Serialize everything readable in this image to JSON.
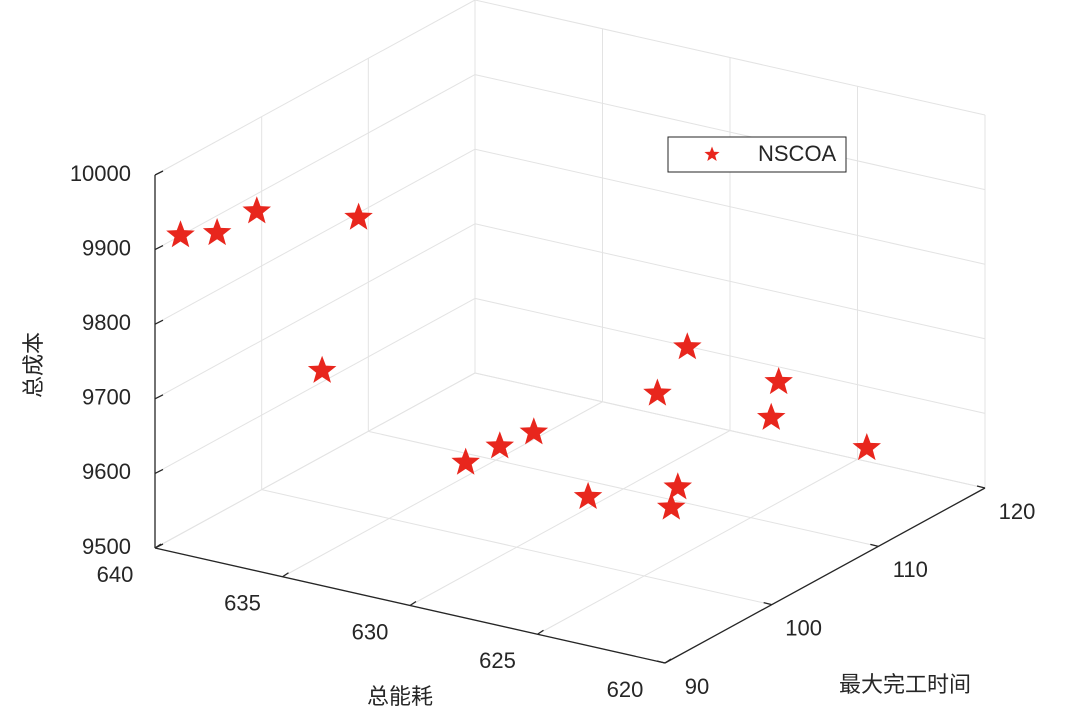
{
  "chart_data": {
    "type": "scatter3d",
    "xlabel": "总能耗",
    "ylabel": "最大完工时间",
    "zlabel": "总成本",
    "xlim": [
      620,
      640
    ],
    "ylim": [
      90,
      120
    ],
    "zlim": [
      9500,
      10000
    ],
    "xticks": [
      620,
      625,
      630,
      635,
      640
    ],
    "yticks": [
      90,
      100,
      110,
      120
    ],
    "zticks": [
      9500,
      9600,
      9700,
      9800,
      9900,
      10000
    ],
    "grid": true,
    "legend": "upper right",
    "series": [
      {
        "name": "NSCOA",
        "color": "#e8261d",
        "x": [
          639,
          638.4,
          638.1,
          636.2,
          634.7,
          632,
          631.5,
          631,
          627.2,
          623.1,
          624.1,
          629.5,
          630,
          626,
          624.2,
          623.8
        ],
        "y": [
          90,
          92,
          95,
          100,
          93,
          100,
          102,
          104,
          100,
          98,
          101,
          112,
          116,
          115,
          110,
          118
        ],
        "z": [
          9927,
          9919,
          9927,
          9894,
          9755,
          9598,
          9608,
          9615,
          9589,
          9622,
          9618,
          9616,
          9643,
          9635,
          9640,
          9540
        ]
      }
    ]
  }
}
